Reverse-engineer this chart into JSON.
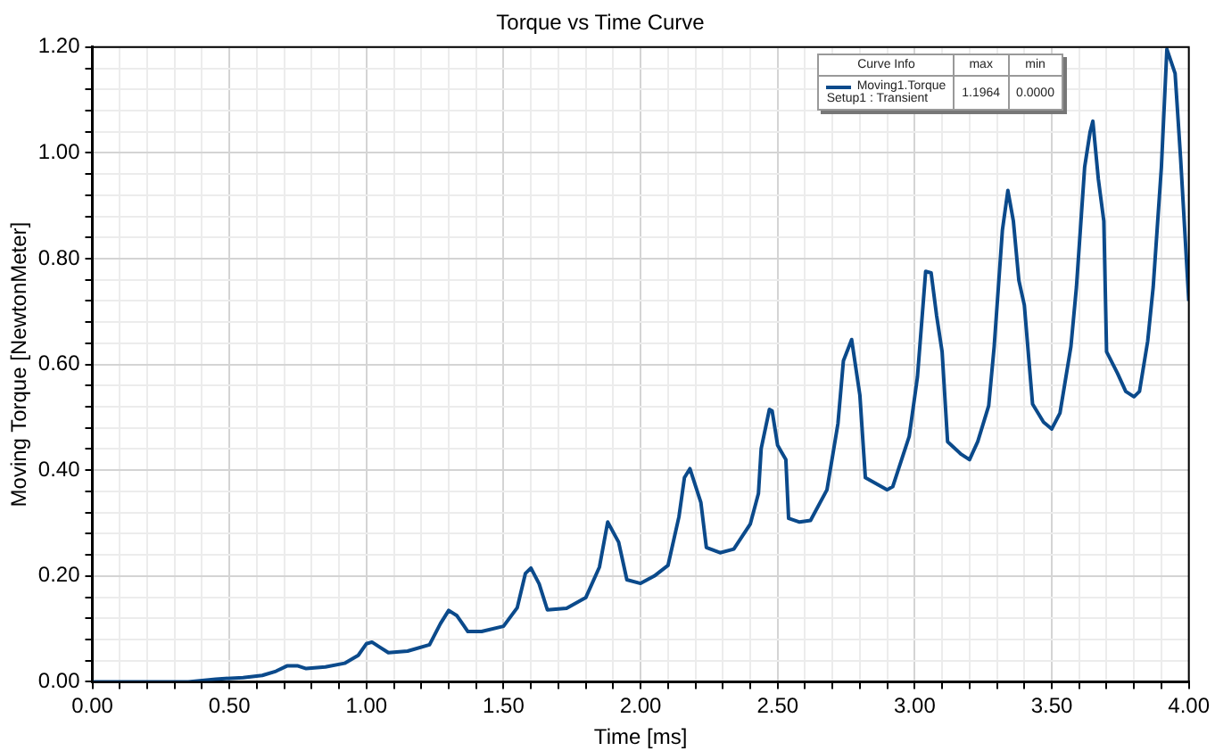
{
  "chart_data": {
    "type": "line",
    "title": "Torque vs Time Curve",
    "xlabel": "Time [ms]",
    "ylabel": "Moving Torque [NewtonMeter]",
    "legend_title": "Curve Info",
    "legend": "top right",
    "grid": true,
    "marker": "none",
    "line_style": "solid",
    "annotations": [
      "max",
      "min",
      "Setup1 : Transient",
      "1.1964",
      "0.0000"
    ],
    "xlim": [
      0,
      4
    ],
    "ylim": [
      0,
      1.2
    ],
    "xticks": [
      {
        "value": 0,
        "label": "0.00"
      },
      {
        "value": 0.1,
        "label": null
      },
      {
        "value": 0.2,
        "label": null
      },
      {
        "value": 0.3,
        "label": null
      },
      {
        "value": 0.4,
        "label": null
      },
      {
        "value": 0.5,
        "label": "0.50"
      },
      {
        "value": 0.6,
        "label": null
      },
      {
        "value": 0.7,
        "label": null
      },
      {
        "value": 0.8,
        "label": null
      },
      {
        "value": 0.9,
        "label": null
      },
      {
        "value": 1,
        "label": "1.00"
      },
      {
        "value": 1.1,
        "label": null
      },
      {
        "value": 1.2,
        "label": null
      },
      {
        "value": 1.3,
        "label": null
      },
      {
        "value": 1.4,
        "label": null
      },
      {
        "value": 1.5,
        "label": "1.50"
      },
      {
        "value": 1.6,
        "label": null
      },
      {
        "value": 1.7,
        "label": null
      },
      {
        "value": 1.8,
        "label": null
      },
      {
        "value": 1.9,
        "label": null
      },
      {
        "value": 2,
        "label": "2.00"
      },
      {
        "value": 2.1,
        "label": null
      },
      {
        "value": 2.2,
        "label": null
      },
      {
        "value": 2.3,
        "label": null
      },
      {
        "value": 2.4,
        "label": null
      },
      {
        "value": 2.5,
        "label": "2.50"
      },
      {
        "value": 2.6,
        "label": null
      },
      {
        "value": 2.7,
        "label": null
      },
      {
        "value": 2.8,
        "label": null
      },
      {
        "value": 2.9,
        "label": null
      },
      {
        "value": 3,
        "label": "3.00"
      },
      {
        "value": 3.1,
        "label": null
      },
      {
        "value": 3.2,
        "label": null
      },
      {
        "value": 3.3,
        "label": null
      },
      {
        "value": 3.4,
        "label": null
      },
      {
        "value": 3.5,
        "label": "3.50"
      },
      {
        "value": 3.6,
        "label": null
      },
      {
        "value": 3.7,
        "label": null
      },
      {
        "value": 3.8,
        "label": null
      },
      {
        "value": 3.9,
        "label": null
      },
      {
        "value": 4,
        "label": "4.00"
      }
    ],
    "yticks": [
      {
        "value": 0,
        "label": "0.00"
      },
      {
        "value": 0.04,
        "label": null
      },
      {
        "value": 0.08,
        "label": null
      },
      {
        "value": 0.12,
        "label": null
      },
      {
        "value": 0.16,
        "label": null
      },
      {
        "value": 0.2,
        "label": "0.20"
      },
      {
        "value": 0.24,
        "label": null
      },
      {
        "value": 0.28,
        "label": null
      },
      {
        "value": 0.32,
        "label": null
      },
      {
        "value": 0.36,
        "label": null
      },
      {
        "value": 0.4,
        "label": "0.40"
      },
      {
        "value": 0.44,
        "label": null
      },
      {
        "value": 0.48,
        "label": null
      },
      {
        "value": 0.52,
        "label": null
      },
      {
        "value": 0.56,
        "label": null
      },
      {
        "value": 0.6,
        "label": "0.60"
      },
      {
        "value": 0.64,
        "label": null
      },
      {
        "value": 0.68,
        "label": null
      },
      {
        "value": 0.72,
        "label": null
      },
      {
        "value": 0.76,
        "label": null
      },
      {
        "value": 0.8,
        "label": "0.80"
      },
      {
        "value": 0.84,
        "label": null
      },
      {
        "value": 0.88,
        "label": null
      },
      {
        "value": 0.92,
        "label": null
      },
      {
        "value": 0.96,
        "label": null
      },
      {
        "value": 1,
        "label": "1.00"
      },
      {
        "value": 1.04,
        "label": null
      },
      {
        "value": 1.08,
        "label": null
      },
      {
        "value": 1.12,
        "label": null
      },
      {
        "value": 1.16,
        "label": null
      },
      {
        "value": 1.2,
        "label": "1.20"
      }
    ],
    "series": [
      {
        "name": "Moving1.Torque",
        "color": "#0b4a8b",
        "x": [
          0,
          0.35,
          0.45,
          0.55,
          0.62,
          0.67,
          0.71,
          0.75,
          0.78,
          0.85,
          0.92,
          0.97,
          1.0,
          1.02,
          1.05,
          1.08,
          1.15,
          1.23,
          1.27,
          1.3,
          1.33,
          1.35,
          1.37,
          1.42,
          1.5,
          1.55,
          1.58,
          1.6,
          1.63,
          1.66,
          1.73,
          1.8,
          1.85,
          1.88,
          1.92,
          1.95,
          2.0,
          2.05,
          2.1,
          2.14,
          2.16,
          2.18,
          2.22,
          2.24,
          2.29,
          2.34,
          2.4,
          2.43,
          2.44,
          2.47,
          2.48,
          2.5,
          2.53,
          2.54,
          2.58,
          2.62,
          2.68,
          2.72,
          2.74,
          2.77,
          2.8,
          2.82,
          2.9,
          2.92,
          2.98,
          3.01,
          3.04,
          3.06,
          3.08,
          3.1,
          3.12,
          3.17,
          3.2,
          3.23,
          3.27,
          3.29,
          3.32,
          3.34,
          3.36,
          3.38,
          3.4,
          3.43,
          3.47,
          3.5,
          3.53,
          3.57,
          3.59,
          3.62,
          3.64,
          3.65,
          3.67,
          3.69,
          3.7,
          3.74,
          3.77,
          3.8,
          3.82,
          3.85,
          3.87,
          3.9,
          3.92,
          3.95,
          3.97,
          4.0
        ],
        "values": [
          0,
          0,
          0.005,
          0.008,
          0.012,
          0.02,
          0.03,
          0.03,
          0.025,
          0.028,
          0.035,
          0.05,
          0.072,
          0.075,
          0.065,
          0.055,
          0.058,
          0.07,
          0.11,
          0.135,
          0.125,
          0.11,
          0.095,
          0.095,
          0.105,
          0.14,
          0.205,
          0.215,
          0.185,
          0.136,
          0.139,
          0.159,
          0.217,
          0.302,
          0.264,
          0.193,
          0.186,
          0.2,
          0.22,
          0.312,
          0.386,
          0.403,
          0.339,
          0.254,
          0.244,
          0.251,
          0.298,
          0.356,
          0.441,
          0.515,
          0.512,
          0.447,
          0.42,
          0.309,
          0.302,
          0.305,
          0.363,
          0.488,
          0.607,
          0.647,
          0.542,
          0.386,
          0.363,
          0.369,
          0.464,
          0.576,
          0.776,
          0.773,
          0.692,
          0.624,
          0.454,
          0.43,
          0.42,
          0.454,
          0.522,
          0.634,
          0.854,
          0.929,
          0.871,
          0.759,
          0.712,
          0.525,
          0.491,
          0.478,
          0.508,
          0.634,
          0.746,
          0.973,
          1.04,
          1.06,
          0.95,
          0.871,
          0.624,
          0.583,
          0.549,
          0.539,
          0.549,
          0.644,
          0.746,
          0.973,
          1.196,
          1.15,
          0.99,
          0.72
        ]
      }
    ]
  }
}
